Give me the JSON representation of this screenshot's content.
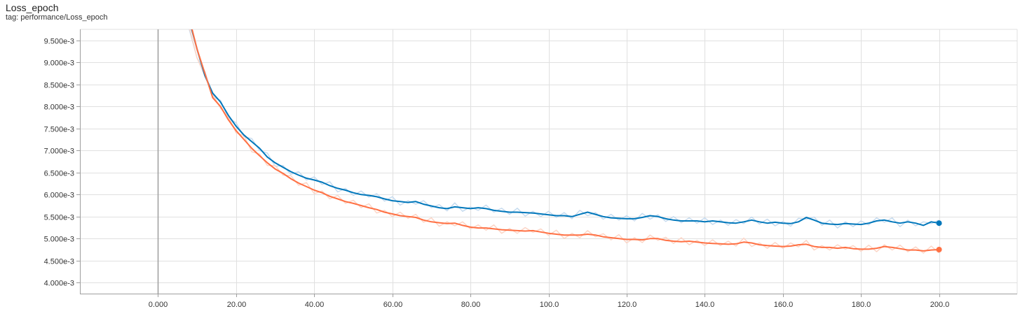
{
  "card": {
    "title": "Loss_epoch",
    "tag": "tag: performance/Loss_epoch"
  },
  "chart_data": {
    "type": "line",
    "title": "Loss_epoch",
    "xlabel": "",
    "ylabel": "",
    "xlim": [
      -20,
      220
    ],
    "ylim": [
      3.75,
      9.75
    ],
    "x_ticks": [
      0,
      20,
      40,
      60,
      80,
      100,
      120,
      140,
      160,
      180,
      200
    ],
    "x_tick_labels": [
      "0.000",
      "20.00",
      "40.00",
      "60.00",
      "80.00",
      "100.0",
      "120.0",
      "140.0",
      "160.0",
      "180.0",
      "200.0"
    ],
    "y_ticks": [
      4.0,
      4.5,
      5.0,
      5.5,
      6.0,
      6.5,
      7.0,
      7.5,
      8.0,
      8.5,
      9.0,
      9.5
    ],
    "y_tick_labels": [
      "4.000e-3",
      "4.500e-3",
      "5.000e-3",
      "5.500e-3",
      "6.000e-3",
      "6.500e-3",
      "7.000e-3",
      "7.500e-3",
      "8.000e-3",
      "8.500e-3",
      "9.000e-3",
      "9.500e-3"
    ],
    "y_unit_scale": "e-3",
    "grid": true,
    "legend": "none",
    "colors": {
      "blue": "#0077bb",
      "orange": "#ff7043",
      "blue_raw": "#c6dbef",
      "orange_raw": "#fcd5c6",
      "axis": "#9e9e9e",
      "grid": "#e0e0e0"
    },
    "series": [
      {
        "color": "#0077bb",
        "x": [
          8,
          10,
          12,
          14,
          16,
          18,
          20,
          22,
          24,
          26,
          28,
          30,
          32,
          34,
          36,
          38,
          40,
          42,
          44,
          46,
          48,
          50,
          52,
          54,
          56,
          58,
          60,
          62,
          64,
          66,
          68,
          70,
          72,
          74,
          76,
          78,
          80,
          82,
          84,
          86,
          88,
          90,
          92,
          94,
          96,
          98,
          100,
          102,
          104,
          106,
          108,
          110,
          112,
          114,
          116,
          118,
          120,
          122,
          124,
          126,
          128,
          130,
          132,
          134,
          136,
          138,
          140,
          142,
          144,
          146,
          148,
          150,
          152,
          154,
          156,
          158,
          160,
          162,
          164,
          166,
          168,
          170,
          172,
          174,
          176,
          178,
          180,
          182,
          184,
          186,
          188,
          190,
          192,
          194,
          196,
          198,
          200
        ],
        "y": [
          9.95,
          9.3,
          8.7,
          8.3,
          8.1,
          7.8,
          7.55,
          7.35,
          7.2,
          7.05,
          6.85,
          6.72,
          6.62,
          6.52,
          6.44,
          6.37,
          6.33,
          6.28,
          6.2,
          6.14,
          6.1,
          6.04,
          6.0,
          5.98,
          5.95,
          5.9,
          5.86,
          5.84,
          5.82,
          5.84,
          5.78,
          5.74,
          5.7,
          5.68,
          5.72,
          5.7,
          5.68,
          5.7,
          5.68,
          5.64,
          5.62,
          5.6,
          5.6,
          5.59,
          5.58,
          5.56,
          5.54,
          5.52,
          5.52,
          5.5,
          5.55,
          5.6,
          5.55,
          5.5,
          5.47,
          5.46,
          5.45,
          5.45,
          5.48,
          5.52,
          5.5,
          5.45,
          5.42,
          5.4,
          5.4,
          5.4,
          5.38,
          5.4,
          5.38,
          5.36,
          5.35,
          5.38,
          5.42,
          5.38,
          5.35,
          5.37,
          5.35,
          5.34,
          5.38,
          5.48,
          5.42,
          5.35,
          5.33,
          5.32,
          5.34,
          5.33,
          5.32,
          5.35,
          5.4,
          5.42,
          5.38,
          5.35,
          5.38,
          5.35,
          5.3,
          5.38,
          5.35
        ]
      },
      {
        "color": "#ff7043",
        "x": [
          8,
          10,
          12,
          14,
          16,
          18,
          20,
          22,
          24,
          26,
          28,
          30,
          32,
          34,
          36,
          38,
          40,
          42,
          44,
          46,
          48,
          50,
          52,
          54,
          56,
          58,
          60,
          62,
          64,
          66,
          68,
          70,
          72,
          74,
          76,
          78,
          80,
          82,
          84,
          86,
          88,
          90,
          92,
          94,
          96,
          98,
          100,
          102,
          104,
          106,
          108,
          110,
          112,
          114,
          116,
          118,
          120,
          122,
          124,
          126,
          128,
          130,
          132,
          134,
          136,
          138,
          140,
          142,
          144,
          146,
          148,
          150,
          152,
          154,
          156,
          158,
          160,
          162,
          164,
          166,
          168,
          170,
          172,
          174,
          176,
          178,
          180,
          182,
          184,
          186,
          188,
          190,
          192,
          194,
          196,
          198,
          200
        ],
        "y": [
          10.0,
          9.3,
          8.75,
          8.2,
          8.0,
          7.7,
          7.45,
          7.25,
          7.05,
          6.88,
          6.72,
          6.58,
          6.48,
          6.36,
          6.26,
          6.18,
          6.1,
          6.04,
          5.96,
          5.9,
          5.84,
          5.8,
          5.75,
          5.7,
          5.66,
          5.6,
          5.56,
          5.52,
          5.5,
          5.48,
          5.42,
          5.38,
          5.36,
          5.34,
          5.35,
          5.3,
          5.26,
          5.24,
          5.24,
          5.22,
          5.2,
          5.19,
          5.18,
          5.17,
          5.18,
          5.15,
          5.12,
          5.1,
          5.08,
          5.08,
          5.08,
          5.1,
          5.08,
          5.04,
          5.02,
          5.0,
          4.98,
          4.98,
          4.97,
          5.0,
          5.0,
          4.96,
          4.94,
          4.93,
          4.94,
          4.92,
          4.9,
          4.89,
          4.88,
          4.87,
          4.88,
          4.92,
          4.9,
          4.86,
          4.84,
          4.83,
          4.82,
          4.83,
          4.86,
          4.87,
          4.82,
          4.8,
          4.8,
          4.78,
          4.8,
          4.77,
          4.76,
          4.76,
          4.78,
          4.82,
          4.8,
          4.77,
          4.74,
          4.74,
          4.72,
          4.74,
          4.75
        ]
      }
    ]
  }
}
